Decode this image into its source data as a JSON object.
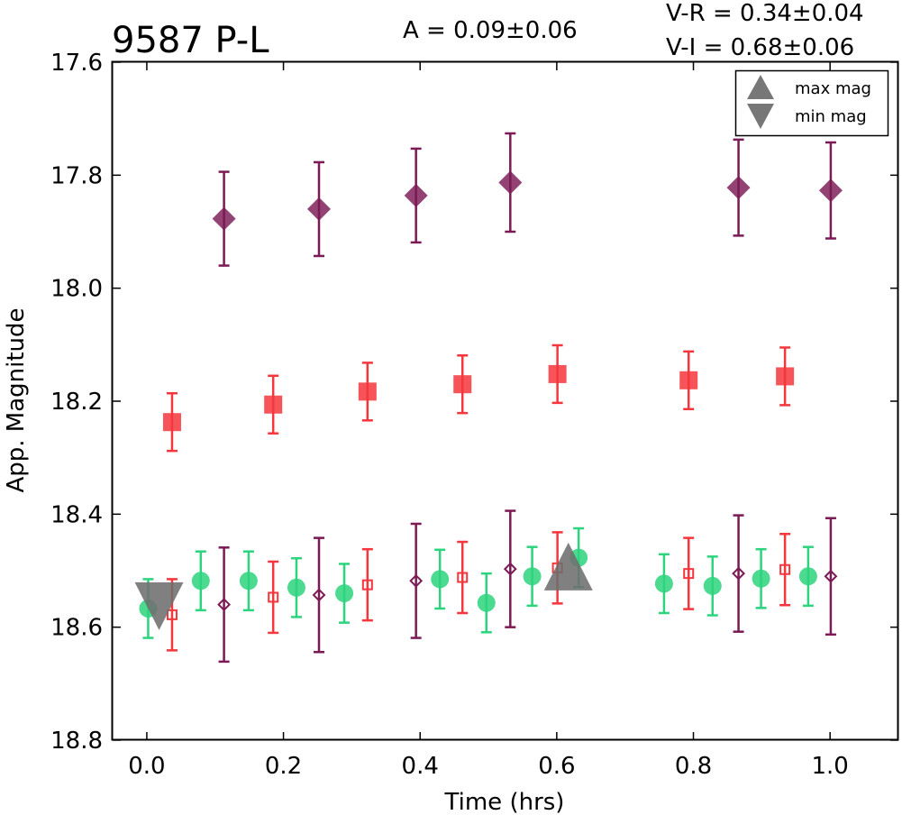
{
  "header": {
    "title": "9587 P-L",
    "amplitude": "A  = 0.09±0.06",
    "vr": "V-R = 0.34±0.04",
    "vi": "V-I  = 0.68±0.06"
  },
  "legend": {
    "max": "max mag",
    "min": "min mag"
  },
  "chart_data": {
    "type": "scatter",
    "xlabel": "Time (hrs)",
    "ylabel": "App. Magnitude",
    "xlim": [
      -0.05,
      1.1
    ],
    "ylim": [
      18.8,
      17.6
    ],
    "y_inverted": true,
    "xticks": [
      "0.0",
      "0.2",
      "0.4",
      "0.6",
      "0.8",
      "1.0"
    ],
    "yticks": [
      "17.6",
      "17.8",
      "18.0",
      "18.2",
      "18.4",
      "18.6",
      "18.8"
    ],
    "legend_position": "top-right",
    "series": [
      {
        "marker": "filled-diamond",
        "color": "#7b1a54",
        "x": [
          0.113,
          0.252,
          0.394,
          0.532,
          0.866,
          1.001
        ],
        "y": [
          17.877,
          17.86,
          17.836,
          17.813,
          17.822,
          17.827
        ],
        "err": [
          0.083,
          0.083,
          0.083,
          0.087,
          0.085,
          0.085
        ]
      },
      {
        "marker": "filled-square",
        "color": "#f5363c",
        "x": [
          0.037,
          0.185,
          0.323,
          0.462,
          0.601,
          0.793,
          0.934
        ],
        "y": [
          18.237,
          18.206,
          18.183,
          18.17,
          18.152,
          18.163,
          18.156
        ],
        "err": [
          0.051,
          0.051,
          0.051,
          0.051,
          0.051,
          0.051,
          0.051
        ]
      },
      {
        "marker": "filled-circle",
        "color": "#2bd47d",
        "x": [
          0.002,
          0.079,
          0.149,
          0.219,
          0.289,
          0.429,
          0.497,
          0.564,
          0.632,
          0.757,
          0.828,
          0.899,
          0.968
        ],
        "y": [
          18.567,
          18.518,
          18.518,
          18.53,
          18.54,
          18.515,
          18.557,
          18.51,
          18.477,
          18.523,
          18.527,
          18.514,
          18.51
        ],
        "err": [
          0.052,
          0.052,
          0.052,
          0.052,
          0.052,
          0.052,
          0.052,
          0.052,
          0.052,
          0.052,
          0.052,
          0.052,
          0.052
        ]
      },
      {
        "marker": "open-square",
        "color": "#f5363c",
        "x": [
          0.037,
          0.185,
          0.323,
          0.462,
          0.601,
          0.793,
          0.934
        ],
        "y": [
          18.578,
          18.547,
          18.525,
          18.512,
          18.495,
          18.505,
          18.498
        ],
        "err": [
          0.063,
          0.063,
          0.063,
          0.063,
          0.063,
          0.063,
          0.063
        ]
      },
      {
        "marker": "open-diamond",
        "color": "#7b1a54",
        "x": [
          0.113,
          0.252,
          0.394,
          0.532,
          0.866,
          1.001
        ],
        "y": [
          18.56,
          18.543,
          18.518,
          18.497,
          18.505,
          18.51
        ],
        "err": [
          0.101,
          0.101,
          0.101,
          0.103,
          0.103,
          0.103
        ]
      }
    ],
    "annotations": [
      {
        "kind": "max mag",
        "marker": "triangle-up",
        "x": 0.617,
        "y": 18.495
      },
      {
        "kind": "min mag",
        "marker": "triangle-down",
        "x": 0.018,
        "y": 18.562
      }
    ]
  }
}
